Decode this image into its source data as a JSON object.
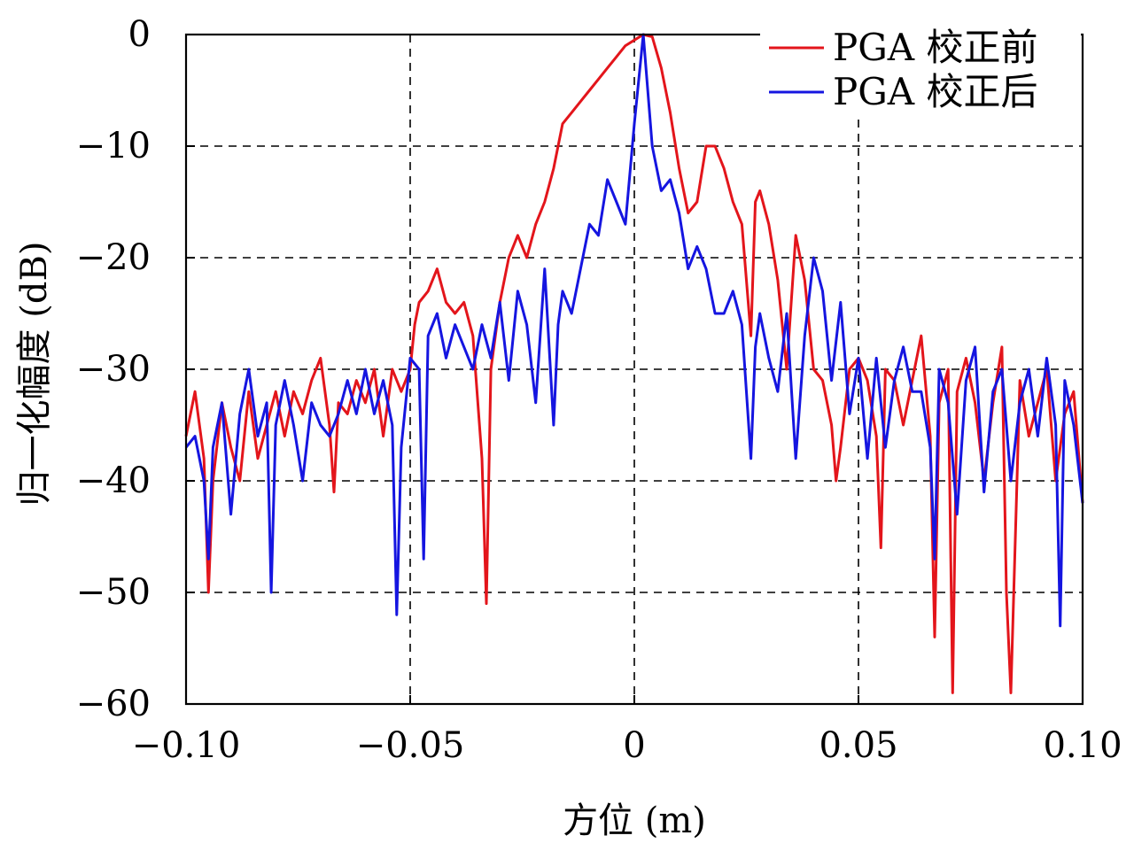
{
  "chart_data": {
    "type": "line",
    "xlabel": "方位 (m)",
    "ylabel": "归一化幅度 (dB)",
    "xlim": [
      -0.1,
      0.1
    ],
    "ylim": [
      -60,
      0
    ],
    "xticks": [
      -0.1,
      -0.05,
      0,
      0.05,
      0.1
    ],
    "xtick_labels": [
      "−0.10",
      "−0.05",
      "0",
      "0.05",
      "0.10"
    ],
    "yticks": [
      0,
      -10,
      -20,
      -30,
      -40,
      -50,
      -60
    ],
    "ytick_labels": [
      "0",
      "−10",
      "−20",
      "−30",
      "−40",
      "−50",
      "−60"
    ],
    "grid": true,
    "legend_position": "top-right",
    "series": [
      {
        "name": "PGA 校正前",
        "color": "#e3151b",
        "x": [
          -0.1,
          -0.098,
          -0.096,
          -0.095,
          -0.094,
          -0.092,
          -0.09,
          -0.088,
          -0.086,
          -0.084,
          -0.082,
          -0.08,
          -0.078,
          -0.076,
          -0.074,
          -0.072,
          -0.07,
          -0.068,
          -0.067,
          -0.066,
          -0.064,
          -0.062,
          -0.06,
          -0.058,
          -0.056,
          -0.054,
          -0.052,
          -0.05,
          -0.049,
          -0.048,
          -0.046,
          -0.044,
          -0.042,
          -0.04,
          -0.038,
          -0.036,
          -0.034,
          -0.033,
          -0.032,
          -0.03,
          -0.028,
          -0.026,
          -0.024,
          -0.022,
          -0.02,
          -0.018,
          -0.016,
          -0.014,
          -0.012,
          -0.01,
          -0.008,
          -0.006,
          -0.004,
          -0.002,
          0.0,
          0.002,
          0.004,
          0.006,
          0.008,
          0.01,
          0.012,
          0.014,
          0.016,
          0.018,
          0.02,
          0.022,
          0.024,
          0.026,
          0.027,
          0.028,
          0.03,
          0.032,
          0.034,
          0.036,
          0.038,
          0.04,
          0.042,
          0.044,
          0.045,
          0.046,
          0.048,
          0.05,
          0.052,
          0.054,
          0.055,
          0.056,
          0.058,
          0.06,
          0.062,
          0.064,
          0.066,
          0.067,
          0.068,
          0.07,
          0.071,
          0.072,
          0.074,
          0.076,
          0.078,
          0.08,
          0.082,
          0.083,
          0.084,
          0.086,
          0.088,
          0.09,
          0.092,
          0.094,
          0.096,
          0.098,
          0.1
        ],
        "y": [
          -36,
          -32,
          -38,
          -50,
          -40,
          -33,
          -37,
          -40,
          -32,
          -38,
          -35,
          -32,
          -36,
          -32,
          -34,
          -31,
          -29,
          -35,
          -41,
          -33,
          -34,
          -31,
          -33,
          -30,
          -36,
          -30,
          -32,
          -30,
          -26,
          -24,
          -23,
          -21,
          -24,
          -25,
          -24,
          -27,
          -38,
          -51,
          -30,
          -24,
          -20,
          -18,
          -20,
          -17,
          -15,
          -12,
          -8,
          -7,
          -6,
          -5,
          -4,
          -3,
          -2,
          -1,
          -0.5,
          0,
          -0.2,
          -3,
          -7,
          -12,
          -16,
          -15,
          -10,
          -10,
          -12,
          -15,
          -17,
          -27,
          -15,
          -14,
          -17,
          -22,
          -30,
          -18,
          -22,
          -30,
          -31,
          -35,
          -40,
          -37,
          -30,
          -29,
          -31,
          -36,
          -46,
          -30,
          -31,
          -35,
          -31,
          -27,
          -36,
          -54,
          -33,
          -30,
          -59,
          -32,
          -29,
          -33,
          -40,
          -33,
          -28,
          -50,
          -59,
          -31,
          -36,
          -33,
          -30,
          -40,
          -34,
          -32,
          -42
        ]
      },
      {
        "name": "PGA 校正后",
        "color": "#1515e0",
        "x": [
          -0.1,
          -0.098,
          -0.096,
          -0.095,
          -0.094,
          -0.092,
          -0.09,
          -0.088,
          -0.086,
          -0.084,
          -0.082,
          -0.081,
          -0.08,
          -0.078,
          -0.076,
          -0.074,
          -0.072,
          -0.07,
          -0.068,
          -0.066,
          -0.064,
          -0.062,
          -0.06,
          -0.058,
          -0.056,
          -0.054,
          -0.053,
          -0.052,
          -0.05,
          -0.048,
          -0.047,
          -0.046,
          -0.044,
          -0.042,
          -0.04,
          -0.038,
          -0.036,
          -0.034,
          -0.032,
          -0.03,
          -0.028,
          -0.026,
          -0.024,
          -0.022,
          -0.02,
          -0.018,
          -0.017,
          -0.016,
          -0.014,
          -0.012,
          -0.01,
          -0.008,
          -0.006,
          -0.004,
          -0.002,
          0.0,
          0.002,
          0.004,
          0.006,
          0.008,
          0.01,
          0.012,
          0.014,
          0.016,
          0.018,
          0.02,
          0.022,
          0.024,
          0.026,
          0.027,
          0.028,
          0.03,
          0.032,
          0.034,
          0.036,
          0.038,
          0.04,
          0.042,
          0.044,
          0.046,
          0.048,
          0.05,
          0.052,
          0.054,
          0.056,
          0.058,
          0.06,
          0.062,
          0.064,
          0.066,
          0.067,
          0.068,
          0.07,
          0.072,
          0.074,
          0.076,
          0.078,
          0.08,
          0.082,
          0.084,
          0.086,
          0.088,
          0.09,
          0.092,
          0.094,
          0.095,
          0.096,
          0.098,
          0.1
        ],
        "y": [
          -37,
          -36,
          -40,
          -47,
          -37,
          -33,
          -43,
          -34,
          -30,
          -36,
          -33,
          -50,
          -35,
          -31,
          -35,
          -40,
          -33,
          -35,
          -36,
          -34,
          -31,
          -34,
          -30,
          -34,
          -31,
          -35,
          -52,
          -37,
          -29,
          -30,
          -47,
          -27,
          -25,
          -29,
          -26,
          -28,
          -30,
          -26,
          -29,
          -24,
          -31,
          -23,
          -26,
          -33,
          -21,
          -35,
          -26,
          -23,
          -25,
          -21,
          -17,
          -18,
          -13,
          -15,
          -17,
          -8,
          0,
          -10,
          -14,
          -13,
          -16,
          -21,
          -19,
          -21,
          -25,
          -25,
          -23,
          -26,
          -38,
          -28,
          -25,
          -29,
          -32,
          -25,
          -38,
          -27,
          -20,
          -23,
          -31,
          -24,
          -34,
          -29,
          -38,
          -29,
          -37,
          -31,
          -28,
          -32,
          -32,
          -37,
          -47,
          -30,
          -33,
          -43,
          -31,
          -28,
          -41,
          -32,
          -30,
          -40,
          -33,
          -30,
          -36,
          -29,
          -35,
          -53,
          -31,
          -35,
          -42
        ]
      }
    ]
  }
}
